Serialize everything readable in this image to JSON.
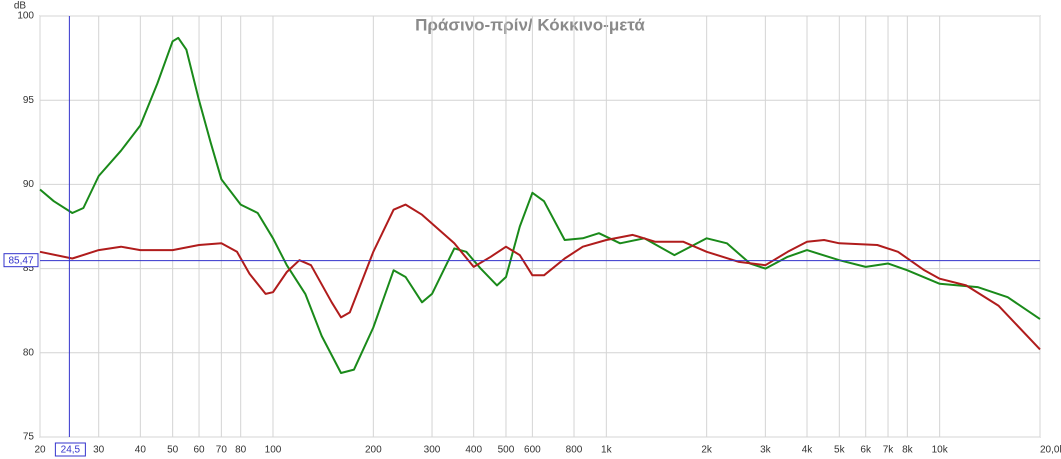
{
  "chart_data": {
    "type": "line",
    "title": "Πράσινο-πρίν/ Κόκκινο-μετά",
    "y_unit": "dB",
    "xscale": "log",
    "grid": true,
    "xlim": [
      20,
      20000
    ],
    "ylim": [
      75,
      100
    ],
    "xticks": [
      20,
      30,
      40,
      50,
      60,
      70,
      80,
      100,
      200,
      300,
      400,
      500,
      600,
      800,
      {
        "value": 1000,
        "label": "1k"
      },
      {
        "value": 2000,
        "label": "2k"
      },
      {
        "value": 3000,
        "label": "3k"
      },
      {
        "value": 4000,
        "label": "4k"
      },
      {
        "value": 5000,
        "label": "5k"
      },
      {
        "value": 6000,
        "label": "6k"
      },
      {
        "value": 7000,
        "label": "7k"
      },
      {
        "value": 8000,
        "label": "8k"
      },
      {
        "value": 10000,
        "label": "10k"
      },
      {
        "value": 20000,
        "label": "20,0k Hz"
      }
    ],
    "yticks": [
      75,
      80,
      85,
      90,
      95,
      100
    ],
    "cursor": {
      "x": {
        "value": 24.5,
        "label": "24,5"
      },
      "y": {
        "value": 85.47,
        "label": "85,47"
      },
      "color": "#3333cc"
    },
    "series": [
      {
        "name": "Πράσινο-πρίν",
        "color": "#1a8a1a",
        "x": [
          20,
          22,
          25,
          27,
          30,
          35,
          40,
          45,
          50,
          52,
          55,
          60,
          65,
          70,
          80,
          90,
          100,
          110,
          125,
          140,
          160,
          175,
          200,
          230,
          250,
          280,
          300,
          350,
          380,
          420,
          470,
          500,
          550,
          600,
          650,
          750,
          850,
          950,
          1100,
          1300,
          1600,
          2000,
          2300,
          2700,
          3000,
          3500,
          4000,
          5000,
          6000,
          7000,
          8000,
          10000,
          13000,
          16000,
          20000
        ],
        "values": [
          89.7,
          89,
          88.3,
          88.6,
          90.5,
          92,
          93.5,
          96,
          98.5,
          98.7,
          98,
          95,
          92.5,
          90.3,
          88.8,
          88.3,
          86.8,
          85.2,
          83.5,
          81,
          78.8,
          79,
          81.5,
          84.9,
          84.5,
          83,
          83.5,
          86.2,
          86,
          85,
          84,
          84.5,
          87.5,
          89.5,
          89,
          86.7,
          86.8,
          87.1,
          86.5,
          86.8,
          85.8,
          86.8,
          86.5,
          85.3,
          85,
          85.7,
          86.1,
          85.5,
          85.1,
          85.3,
          84.9,
          84.1,
          83.9,
          83.3,
          82
        ]
      },
      {
        "name": "Κόκκινο-μετά",
        "color": "#b01c1c",
        "x": [
          20,
          25,
          30,
          35,
          40,
          50,
          60,
          70,
          78,
          85,
          95,
          100,
          110,
          120,
          130,
          150,
          160,
          170,
          200,
          230,
          250,
          280,
          350,
          400,
          450,
          500,
          550,
          600,
          650,
          750,
          850,
          1000,
          1200,
          1400,
          1700,
          2000,
          2500,
          3000,
          3500,
          4000,
          4500,
          5000,
          6500,
          7500,
          9000,
          10000,
          12000,
          15000,
          20000
        ],
        "values": [
          86,
          85.6,
          86.1,
          86.3,
          86.1,
          86.1,
          86.4,
          86.5,
          86,
          84.7,
          83.5,
          83.6,
          84.8,
          85.5,
          85.2,
          83,
          82.1,
          82.4,
          86,
          88.5,
          88.8,
          88.2,
          86.5,
          85.1,
          85.7,
          86.3,
          85.8,
          84.6,
          84.6,
          85.6,
          86.3,
          86.7,
          87,
          86.6,
          86.6,
          86,
          85.4,
          85.2,
          86,
          86.6,
          86.7,
          86.5,
          86.4,
          86,
          84.9,
          84.4,
          84,
          82.8,
          80.2
        ]
      }
    ]
  }
}
